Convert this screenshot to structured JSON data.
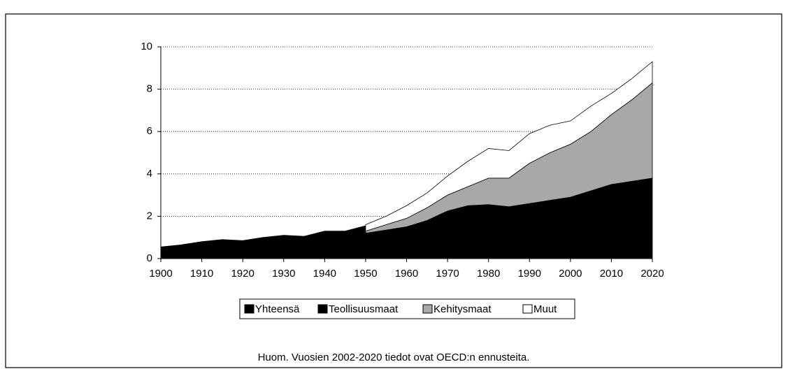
{
  "chart_data": {
    "type": "area",
    "x": [
      1900,
      1905,
      1910,
      1915,
      1920,
      1925,
      1930,
      1935,
      1940,
      1945,
      1950,
      1955,
      1960,
      1965,
      1970,
      1975,
      1980,
      1985,
      1990,
      1995,
      2000,
      2005,
      2010,
      2015,
      2020
    ],
    "series": [
      {
        "name": "Yhteensä",
        "color": "#000000",
        "values": [
          0.55,
          0.65,
          0.8,
          0.9,
          0.85,
          1.0,
          1.1,
          1.05,
          1.3,
          1.3,
          1.55,
          null,
          null,
          null,
          null,
          null,
          null,
          null,
          null,
          null,
          null,
          null,
          null,
          null,
          null
        ]
      },
      {
        "name": "Teollisuusmaat",
        "color": "#000000",
        "stacked": true,
        "values": [
          null,
          null,
          null,
          null,
          null,
          null,
          null,
          null,
          null,
          null,
          1.2,
          1.35,
          1.5,
          1.8,
          2.25,
          2.5,
          2.55,
          2.45,
          2.6,
          2.75,
          2.9,
          3.2,
          3.5,
          3.65,
          3.8
        ]
      },
      {
        "name": "Kehitysmaat",
        "color": "#a8a8a8",
        "stacked": true,
        "values": [
          null,
          null,
          null,
          null,
          null,
          null,
          null,
          null,
          null,
          null,
          0.1,
          0.25,
          0.4,
          0.6,
          0.75,
          0.9,
          1.25,
          1.35,
          1.9,
          2.25,
          2.5,
          2.8,
          3.3,
          3.85,
          4.5
        ]
      },
      {
        "name": "Muut",
        "color": "#ffffff",
        "stacked": true,
        "values": [
          null,
          null,
          null,
          null,
          null,
          null,
          null,
          null,
          null,
          null,
          0.3,
          0.4,
          0.6,
          0.7,
          0.9,
          1.2,
          1.4,
          1.3,
          1.4,
          1.3,
          1.1,
          1.2,
          1.0,
          1.0,
          1.0
        ]
      }
    ],
    "xlim": [
      1900,
      2020
    ],
    "xticks": [
      1900,
      1910,
      1920,
      1930,
      1940,
      1950,
      1960,
      1970,
      1980,
      1990,
      2000,
      2010,
      2020
    ],
    "ylim": [
      0,
      10
    ],
    "yticks": [
      0,
      2,
      4,
      6,
      8,
      10
    ],
    "grid": true,
    "note": "Huom. Vuosien 2002-2020 tiedot ovat OECD:n ennusteita."
  }
}
